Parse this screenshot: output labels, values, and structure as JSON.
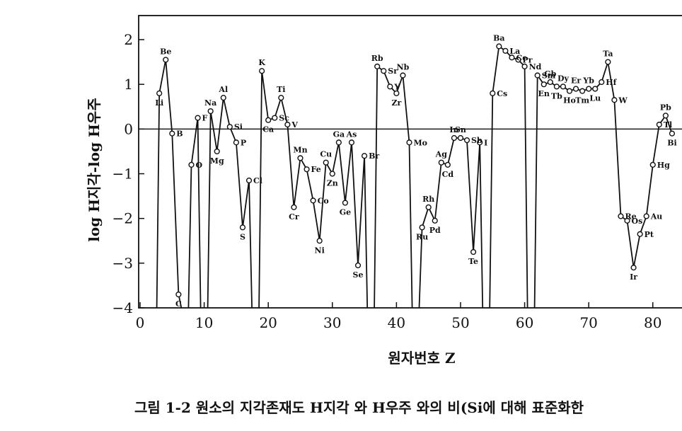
{
  "chart_data": {
    "type": "line",
    "xlabel": "원자번호  Z",
    "ylabel": "log H지각-log H우주",
    "xlim": [
      0,
      84
    ],
    "ylim": [
      -4,
      2.5
    ],
    "xticks": [
      0,
      10,
      20,
      30,
      40,
      50,
      60,
      70,
      80
    ],
    "yticks": [
      2,
      1,
      0,
      -1,
      -2,
      -3,
      -4
    ],
    "xtick_labels": [
      "0",
      "10",
      "20",
      "30",
      "40",
      "50",
      "60",
      "70",
      "80"
    ],
    "ytick_labels": [
      "2",
      "1",
      "0",
      "−1",
      "−2",
      "−3",
      "−4"
    ],
    "reference_line_y": 0,
    "series": [
      {
        "points": [
          {
            "z": 3,
            "v": 0.8,
            "label": "Li"
          },
          {
            "z": 4,
            "v": 1.55,
            "label": "Be"
          },
          {
            "z": 5,
            "v": -0.1,
            "label": "B"
          },
          {
            "z": 6,
            "v": -3.7,
            "label": "C"
          },
          {
            "z": 8,
            "v": -0.8,
            "label": "O"
          },
          {
            "z": 9,
            "v": 0.25,
            "label": "F"
          },
          {
            "z": 11,
            "v": 0.4,
            "label": "Na"
          },
          {
            "z": 12,
            "v": -0.5,
            "label": "Mg"
          },
          {
            "z": 13,
            "v": 0.7,
            "label": "Al"
          },
          {
            "z": 14,
            "v": 0.05,
            "label": "Si"
          },
          {
            "z": 15,
            "v": -0.3,
            "label": "P"
          },
          {
            "z": 16,
            "v": -2.2,
            "label": "S"
          },
          {
            "z": 17,
            "v": -1.15,
            "label": "Cl"
          },
          {
            "z": 19,
            "v": 1.3,
            "label": "K"
          },
          {
            "z": 20,
            "v": 0.2,
            "label": "Ca"
          },
          {
            "z": 21,
            "v": 0.25,
            "label": "Sc"
          },
          {
            "z": 22,
            "v": 0.7,
            "label": "Ti"
          },
          {
            "z": 23,
            "v": 0.1,
            "label": "V"
          },
          {
            "z": 24,
            "v": -1.75,
            "label": "Cr"
          },
          {
            "z": 25,
            "v": -0.65,
            "label": "Mn"
          },
          {
            "z": 26,
            "v": -0.9,
            "label": "Fe"
          },
          {
            "z": 27,
            "v": -1.6,
            "label": "Co"
          },
          {
            "z": 28,
            "v": -2.5,
            "label": "Ni"
          },
          {
            "z": 29,
            "v": -0.75,
            "label": "Cu"
          },
          {
            "z": 30,
            "v": -1.0,
            "label": "Zn"
          },
          {
            "z": 31,
            "v": -0.3,
            "label": "Ga"
          },
          {
            "z": 32,
            "v": -1.65,
            "label": "Ge"
          },
          {
            "z": 33,
            "v": -0.3,
            "label": "As"
          },
          {
            "z": 34,
            "v": -3.05,
            "label": "Se"
          },
          {
            "z": 35,
            "v": -0.6,
            "label": "Br"
          },
          {
            "z": 37,
            "v": 1.4,
            "label": "Rb"
          },
          {
            "z": 38,
            "v": 1.3,
            "label": "Sr"
          },
          {
            "z": 39,
            "v": 0.95,
            "label": "Y"
          },
          {
            "z": 40,
            "v": 0.8,
            "label": "Zr"
          },
          {
            "z": 41,
            "v": 1.2,
            "label": "Nb"
          },
          {
            "z": 42,
            "v": -0.3,
            "label": "Mo"
          },
          {
            "z": 44,
            "v": -2.2,
            "label": "Ru"
          },
          {
            "z": 45,
            "v": -1.75,
            "label": "Rh"
          },
          {
            "z": 46,
            "v": -2.05,
            "label": "Pd"
          },
          {
            "z": 47,
            "v": -0.75,
            "label": "Ag"
          },
          {
            "z": 48,
            "v": -0.8,
            "label": "Cd"
          },
          {
            "z": 49,
            "v": -0.2,
            "label": "In"
          },
          {
            "z": 50,
            "v": -0.2,
            "label": "Sn"
          },
          {
            "z": 51,
            "v": -0.25,
            "label": "Sb"
          },
          {
            "z": 52,
            "v": -2.75,
            "label": "Te"
          },
          {
            "z": 53,
            "v": -0.3,
            "label": "I"
          },
          {
            "z": 55,
            "v": 0.8,
            "label": "Cs"
          },
          {
            "z": 56,
            "v": 1.85,
            "label": "Ba"
          },
          {
            "z": 57,
            "v": 1.75,
            "label": "La"
          },
          {
            "z": 58,
            "v": 1.6,
            "label": "Ce"
          },
          {
            "z": 59,
            "v": 1.55,
            "label": "Pr"
          },
          {
            "z": 60,
            "v": 1.4,
            "label": "Nd"
          },
          {
            "z": 62,
            "v": 1.2,
            "label": "Sm"
          },
          {
            "z": 63,
            "v": 1.0,
            "label": "En"
          },
          {
            "z": 64,
            "v": 1.05,
            "label": "Gb"
          },
          {
            "z": 65,
            "v": 0.95,
            "label": "Tb"
          },
          {
            "z": 66,
            "v": 0.95,
            "label": "Dy"
          },
          {
            "z": 67,
            "v": 0.85,
            "label": "Ho"
          },
          {
            "z": 68,
            "v": 0.9,
            "label": "Er"
          },
          {
            "z": 69,
            "v": 0.85,
            "label": "Tm"
          },
          {
            "z": 70,
            "v": 0.9,
            "label": "Yb"
          },
          {
            "z": 71,
            "v": 0.9,
            "label": "Lu"
          },
          {
            "z": 72,
            "v": 1.05,
            "label": "Hf"
          },
          {
            "z": 73,
            "v": 1.5,
            "label": "Ta"
          },
          {
            "z": 74,
            "v": 0.65,
            "label": "W"
          },
          {
            "z": 75,
            "v": -1.95,
            "label": "Re"
          },
          {
            "z": 76,
            "v": -2.05,
            "label": "Os"
          },
          {
            "z": 77,
            "v": -3.1,
            "label": "Ir"
          },
          {
            "z": 78,
            "v": -2.35,
            "label": "Pt"
          },
          {
            "z": 79,
            "v": -1.95,
            "label": "Au"
          },
          {
            "z": 80,
            "v": -0.8,
            "label": "Hg"
          },
          {
            "z": 81,
            "v": 0.1,
            "label": "Tl"
          },
          {
            "z": 82,
            "v": 0.3,
            "label": "Pb"
          },
          {
            "z": 83,
            "v": -0.1,
            "label": "Bi"
          }
        ]
      }
    ],
    "caption": "그림 1-2  원소의 지각존재도 H지각 와 H우주 와의 비(Si에 대해 표준화한"
  }
}
